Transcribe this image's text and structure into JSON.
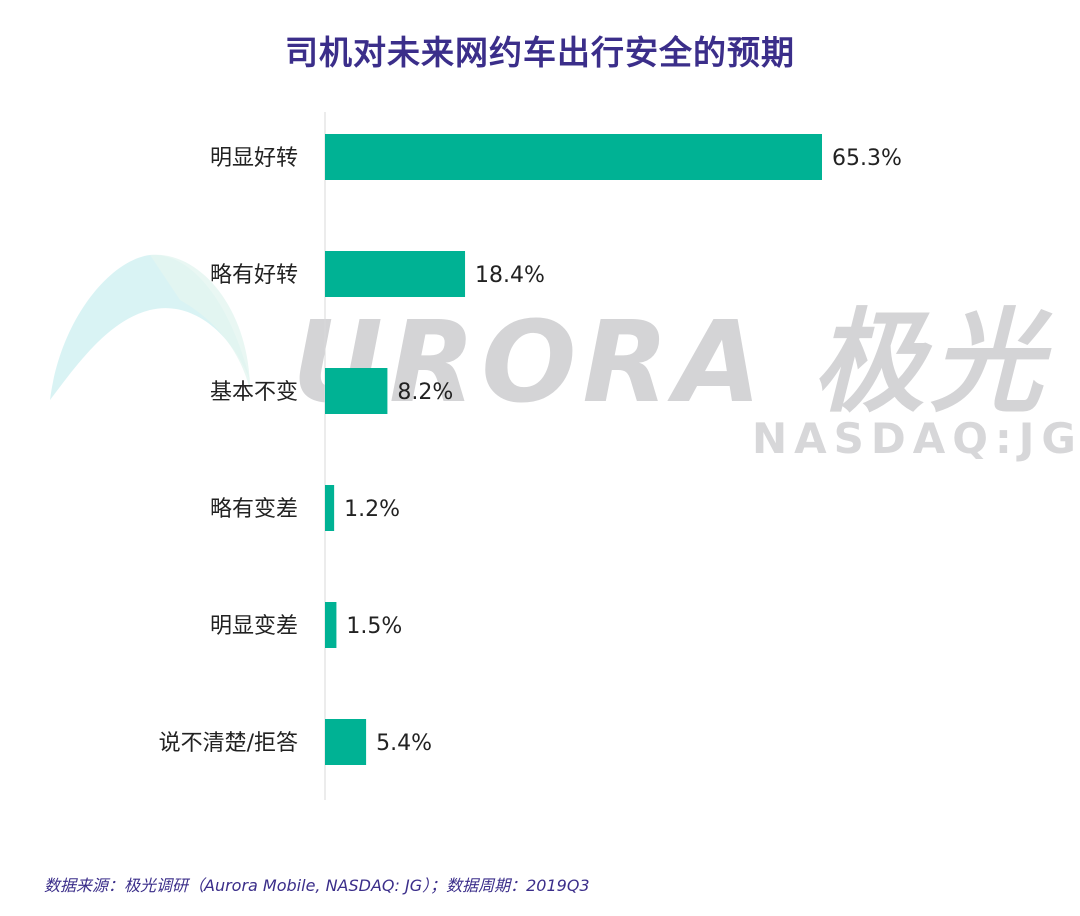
{
  "title": "司机对未来网约车出行安全的预期",
  "chart_data": {
    "type": "bar",
    "orientation": "horizontal",
    "title": "司机对未来网约车出行安全的预期",
    "categories": [
      "明显好转",
      "略有好转",
      "基本不变",
      "略有变差",
      "明显变差",
      "说不清楚/拒答"
    ],
    "values": [
      65.3,
      18.4,
      8.2,
      1.2,
      1.5,
      5.4
    ],
    "value_labels": [
      "65.3%",
      "18.4%",
      "8.2%",
      "1.2%",
      "1.5%",
      "5.4%"
    ],
    "unit": "%",
    "bar_color": "#00b294",
    "grid": false,
    "legend": "none"
  },
  "watermark": {
    "main": "URORA 极光",
    "sub": "NASDAQ:JG",
    "colors": {
      "text": "#d4d4d6",
      "swoosh_a": "#c9eef0",
      "swoosh_b": "#e3f5f0"
    }
  },
  "footer": "数据来源：极光调研（Aurora Mobile, NASDAQ: JG）；数据周期：2019Q3",
  "colors": {
    "title": "#3b2e8a",
    "label": "#222222",
    "axis": "#d9d9d9",
    "footer": "#3b2e8a"
  }
}
